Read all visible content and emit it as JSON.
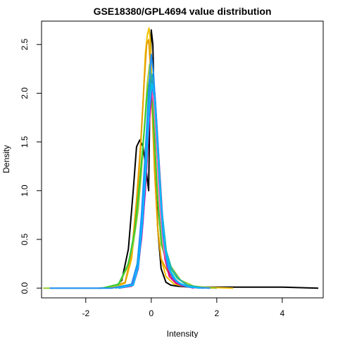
{
  "chart_data": {
    "type": "line",
    "title": "GSE18380/GPL4694 value distribution",
    "xlabel": "Intensity",
    "ylabel": "Density",
    "xlim": [
      -3.35,
      5.25
    ],
    "ylim": [
      -0.1,
      2.74
    ],
    "x_ticks": [
      -2,
      0,
      2,
      4
    ],
    "y_ticks": [
      0.0,
      0.5,
      1.0,
      1.5,
      2.0,
      2.5
    ],
    "x_tick_labels": [
      "-2",
      "0",
      "2",
      "4"
    ],
    "y_tick_labels": [
      "0.0",
      "0.5",
      "1.0",
      "1.5",
      "2.0",
      "2.5"
    ],
    "grid": false,
    "legend": "none",
    "series": [
      {
        "color": "#000000",
        "width": 2,
        "x": [
          -1.6,
          -1.1,
          -0.9,
          -0.7,
          -0.55,
          -0.45,
          -0.35,
          -0.25,
          -0.15,
          -0.08,
          -0.04,
          0.0,
          0.05,
          0.12,
          0.2,
          0.3,
          0.45,
          0.6,
          0.8,
          1.2,
          2.0,
          3.0,
          4.0,
          5.1
        ],
        "y": [
          0.0,
          0.01,
          0.08,
          0.4,
          1.0,
          1.45,
          1.52,
          1.45,
          1.2,
          1.0,
          2.0,
          2.65,
          2.5,
          1.4,
          0.6,
          0.2,
          0.06,
          0.03,
          0.02,
          0.01,
          0.01,
          0.01,
          0.01,
          0.0
        ]
      },
      {
        "color": "#f0c000",
        "width": 2,
        "x": [
          -1.2,
          -0.8,
          -0.6,
          -0.45,
          -0.35,
          -0.25,
          -0.18,
          -0.12,
          -0.07,
          -0.03,
          0.0,
          0.05,
          0.12,
          0.2,
          0.3,
          0.45,
          0.7,
          1.0,
          1.5,
          2.5
        ],
        "y": [
          0.0,
          0.05,
          0.3,
          0.8,
          1.3,
          1.9,
          2.4,
          2.6,
          2.67,
          2.55,
          2.3,
          1.8,
          1.1,
          0.6,
          0.3,
          0.12,
          0.04,
          0.02,
          0.01,
          0.0
        ]
      },
      {
        "color": "#e6a000",
        "width": 2,
        "x": [
          -1.3,
          -0.8,
          -0.6,
          -0.45,
          -0.32,
          -0.22,
          -0.14,
          -0.08,
          -0.03,
          0.02,
          0.1,
          0.2,
          0.3,
          0.45,
          0.6,
          0.8,
          1.2,
          2.0
        ],
        "y": [
          0.0,
          0.06,
          0.35,
          0.9,
          1.5,
          2.1,
          2.5,
          2.55,
          2.3,
          1.9,
          1.2,
          0.6,
          0.3,
          0.2,
          0.12,
          0.05,
          0.01,
          0.0
        ]
      },
      {
        "color": "#9acd32",
        "width": 2,
        "x": [
          -3.3,
          -2.5,
          -1.5,
          -1.0,
          -0.75,
          -0.55,
          -0.4,
          -0.3,
          -0.2,
          -0.12,
          -0.05,
          0.0,
          0.08,
          0.18,
          0.3,
          0.45,
          0.65,
          0.9,
          1.3,
          2.0
        ],
        "y": [
          0.0,
          0.0,
          0.0,
          0.03,
          0.2,
          0.45,
          0.8,
          1.2,
          1.7,
          2.1,
          2.3,
          2.2,
          1.7,
          1.0,
          0.45,
          0.3,
          0.2,
          0.08,
          0.02,
          0.0
        ]
      },
      {
        "color": "#32cd32",
        "width": 2,
        "x": [
          -1.5,
          -1.0,
          -0.7,
          -0.5,
          -0.35,
          -0.22,
          -0.12,
          -0.05,
          0.02,
          0.1,
          0.2,
          0.32,
          0.45,
          0.6,
          0.8,
          1.1,
          1.6
        ],
        "y": [
          0.0,
          0.04,
          0.25,
          0.6,
          1.1,
          1.6,
          2.0,
          2.15,
          2.0,
          1.5,
          0.9,
          0.45,
          0.28,
          0.2,
          0.1,
          0.03,
          0.0
        ]
      },
      {
        "color": "#e6007e",
        "width": 2,
        "x": [
          -1.0,
          -0.6,
          -0.45,
          -0.3,
          -0.18,
          -0.08,
          0.0,
          0.05,
          0.12,
          0.2,
          0.3,
          0.42,
          0.55,
          0.75,
          1.0,
          1.5
        ],
        "y": [
          0.0,
          0.02,
          0.15,
          0.5,
          1.0,
          1.6,
          1.95,
          2.0,
          1.8,
          1.3,
          0.7,
          0.3,
          0.12,
          0.05,
          0.02,
          0.0
        ]
      },
      {
        "color": "#c71585",
        "width": 2,
        "x": [
          -1.0,
          -0.55,
          -0.4,
          -0.28,
          -0.16,
          -0.06,
          0.02,
          0.1,
          0.18,
          0.28,
          0.4,
          0.55,
          0.7,
          0.9,
          1.3
        ],
        "y": [
          0.0,
          0.03,
          0.2,
          0.6,
          1.2,
          1.75,
          2.0,
          1.85,
          1.4,
          0.8,
          0.35,
          0.15,
          0.1,
          0.04,
          0.0
        ]
      },
      {
        "color": "#ff69b4",
        "width": 2,
        "x": [
          -1.1,
          -0.6,
          -0.42,
          -0.3,
          -0.18,
          -0.08,
          0.0,
          0.08,
          0.16,
          0.26,
          0.38,
          0.52,
          0.7,
          0.95,
          1.4
        ],
        "y": [
          0.0,
          0.04,
          0.25,
          0.7,
          1.3,
          1.8,
          2.05,
          1.9,
          1.45,
          0.85,
          0.4,
          0.2,
          0.1,
          0.03,
          0.0
        ]
      },
      {
        "color": "#9932cc",
        "width": 2,
        "x": [
          -1.0,
          -0.55,
          -0.4,
          -0.26,
          -0.14,
          -0.04,
          0.04,
          0.12,
          0.22,
          0.34,
          0.48,
          0.65,
          0.9,
          1.3
        ],
        "y": [
          0.0,
          0.03,
          0.2,
          0.65,
          1.25,
          1.85,
          2.1,
          1.95,
          1.4,
          0.75,
          0.3,
          0.1,
          0.03,
          0.0
        ]
      },
      {
        "color": "#4169e1",
        "width": 2,
        "x": [
          -1.0,
          -0.55,
          -0.4,
          -0.27,
          -0.15,
          -0.05,
          0.03,
          0.11,
          0.2,
          0.31,
          0.44,
          0.6,
          0.8,
          1.1,
          1.6
        ],
        "y": [
          0.0,
          0.03,
          0.22,
          0.7,
          1.3,
          1.9,
          2.15,
          2.0,
          1.5,
          0.85,
          0.4,
          0.16,
          0.06,
          0.02,
          0.0
        ]
      },
      {
        "color": "#20b2aa",
        "width": 2,
        "x": [
          -1.1,
          -0.6,
          -0.43,
          -0.3,
          -0.18,
          -0.07,
          0.02,
          0.1,
          0.2,
          0.32,
          0.46,
          0.62,
          0.82,
          1.1,
          1.6
        ],
        "y": [
          0.0,
          0.04,
          0.25,
          0.7,
          1.35,
          1.95,
          2.2,
          2.0,
          1.45,
          0.8,
          0.38,
          0.2,
          0.1,
          0.03,
          0.0
        ]
      },
      {
        "color": "#1e90ff",
        "width": 2,
        "x": [
          -3.1,
          -2.0,
          -1.2,
          -0.6,
          -0.42,
          -0.3,
          -0.18,
          -0.08,
          0.0,
          0.07,
          0.15,
          0.25,
          0.36,
          0.5,
          0.68,
          0.9,
          1.2,
          1.8
        ],
        "y": [
          0.0,
          0.0,
          0.0,
          0.04,
          0.25,
          0.75,
          1.4,
          2.0,
          2.4,
          2.2,
          1.75,
          1.1,
          0.55,
          0.22,
          0.1,
          0.04,
          0.01,
          0.0
        ]
      },
      {
        "color": "#00bfff",
        "width": 2,
        "x": [
          -1.0,
          -0.55,
          -0.4,
          -0.28,
          -0.16,
          -0.06,
          0.02,
          0.1,
          0.19,
          0.3,
          0.43,
          0.58,
          0.78,
          1.05,
          1.5
        ],
        "y": [
          0.0,
          0.03,
          0.22,
          0.65,
          1.25,
          1.85,
          2.1,
          1.95,
          1.45,
          0.85,
          0.4,
          0.18,
          0.07,
          0.02,
          0.0
        ]
      }
    ]
  }
}
